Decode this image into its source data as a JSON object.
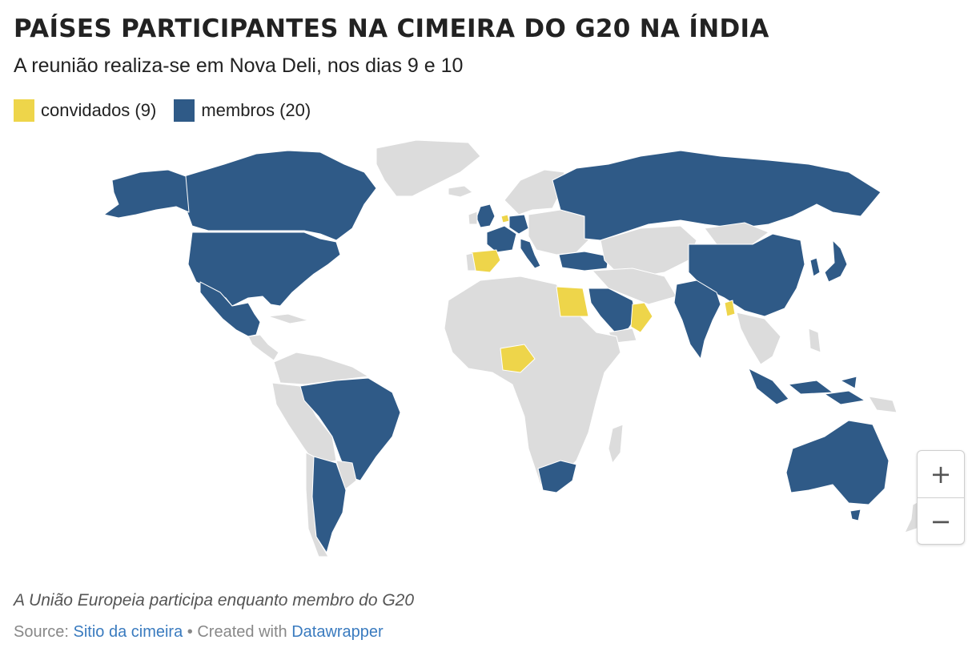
{
  "header": {
    "title": "PAÍSES PARTICIPANTES NA CIMEIRA DO G20 NA ÍNDIA",
    "subtitle": "A reunião realiza-se em Nova Deli, nos dias 9 e 10"
  },
  "legend": [
    {
      "label": "convidados (9)",
      "color": "#eed54a"
    },
    {
      "label": "membros (20)",
      "color": "#2f5a87"
    }
  ],
  "colors": {
    "land": "#dcdcdc",
    "member": "#2f5a87",
    "guest": "#eed54a",
    "border": "#ffffff"
  },
  "zoom": {
    "in_label": "+",
    "out_label": "−"
  },
  "note": "A União Europeia participa enquanto membro do G20",
  "footer": {
    "source_prefix": "Source:",
    "source_link": "Sitio da cimeira",
    "separator": "•",
    "created_prefix": "Created with",
    "created_link": "Datawrapper"
  }
}
